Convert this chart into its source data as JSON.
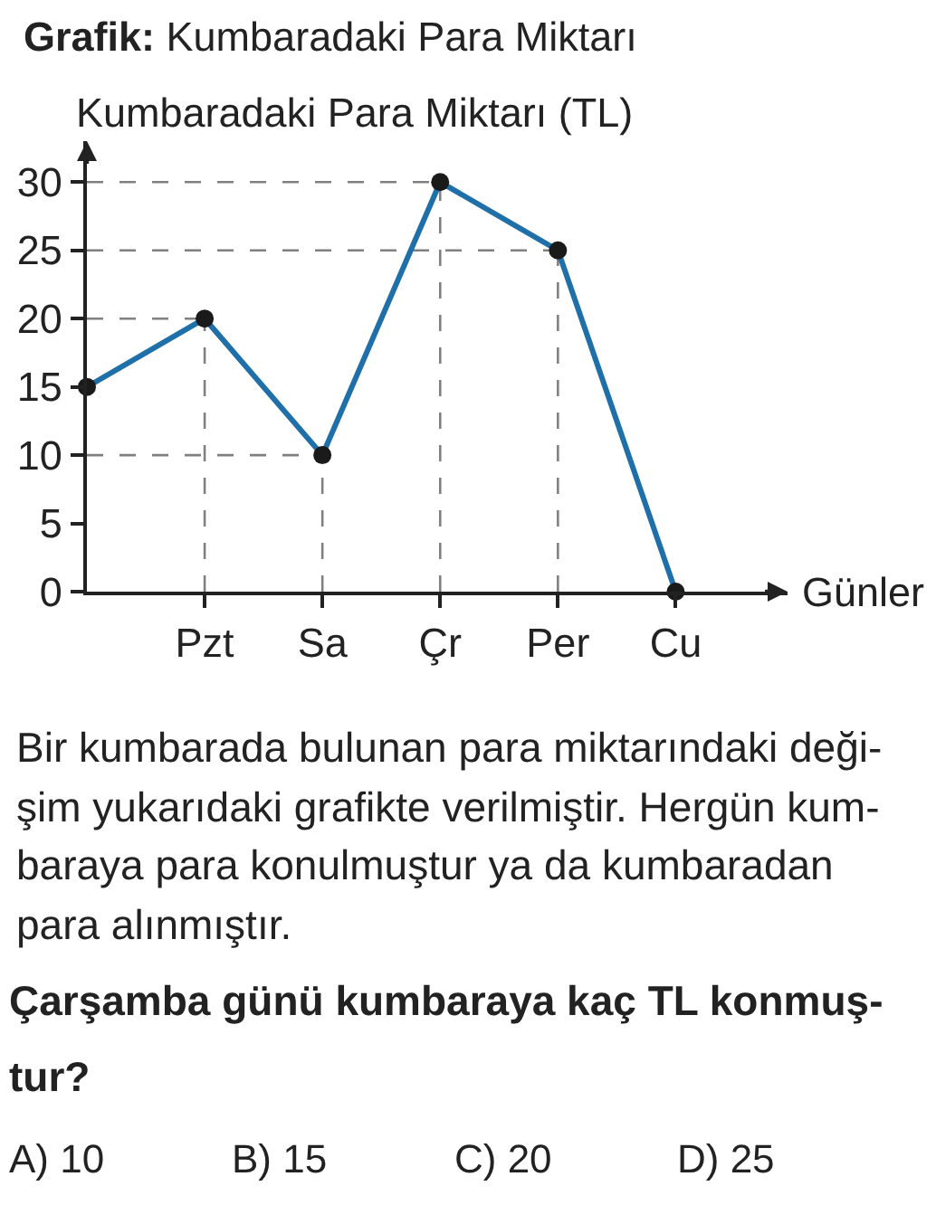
{
  "chart_data": {
    "type": "line",
    "title": "Grafik: Kumbaradaki Para Miktarı",
    "xlabel": "Günler",
    "ylabel": "Kumbaradaki Para Miktarı (TL)",
    "categories": [
      null,
      "Pzt",
      "Sa",
      "Çr",
      "Per",
      "Cu"
    ],
    "series": [
      {
        "color": "#1f6fa8",
        "values": [
          15,
          20,
          10,
          30,
          25,
          0
        ]
      }
    ],
    "ylim": [
      0,
      33
    ],
    "yticks": [
      0,
      5,
      10,
      15,
      20,
      25,
      30
    ],
    "marker": "circle",
    "line_style": "solid",
    "ref_lines": [
      {
        "axis": "y",
        "value": 10,
        "color": "#808080",
        "line_style": "dashed"
      },
      {
        "axis": "y",
        "value": 20,
        "color": "#808080",
        "line_style": "dashed"
      },
      {
        "axis": "y",
        "value": 25,
        "color": "#808080",
        "line_style": "dashed"
      },
      {
        "axis": "y",
        "value": 30,
        "color": "#808080",
        "line_style": "dashed"
      },
      {
        "axis": "x",
        "value": "Pzt",
        "color": "#808080",
        "line_style": "dashed"
      },
      {
        "axis": "x",
        "value": "Sa",
        "color": "#808080",
        "line_style": "dashed"
      },
      {
        "axis": "x",
        "value": "Çr",
        "color": "#808080",
        "line_style": "dashed"
      },
      {
        "axis": "x",
        "value": "Per",
        "color": "#808080",
        "line_style": "dashed"
      }
    ],
    "annotations": [
      "Bir kumbarada bulunan para miktarındaki deği-\nşim yukarıdaki grafikte verilmiştir. Hergün kum-\nbaraya para konulmuştur ya da kumbaradan\npara alınmıştır.",
      "Çarşamba günü kumbaraya kaç TL konmuş-\ntur?",
      "A) 10",
      "B) 15",
      "C) 20",
      "D) 25"
    ]
  }
}
